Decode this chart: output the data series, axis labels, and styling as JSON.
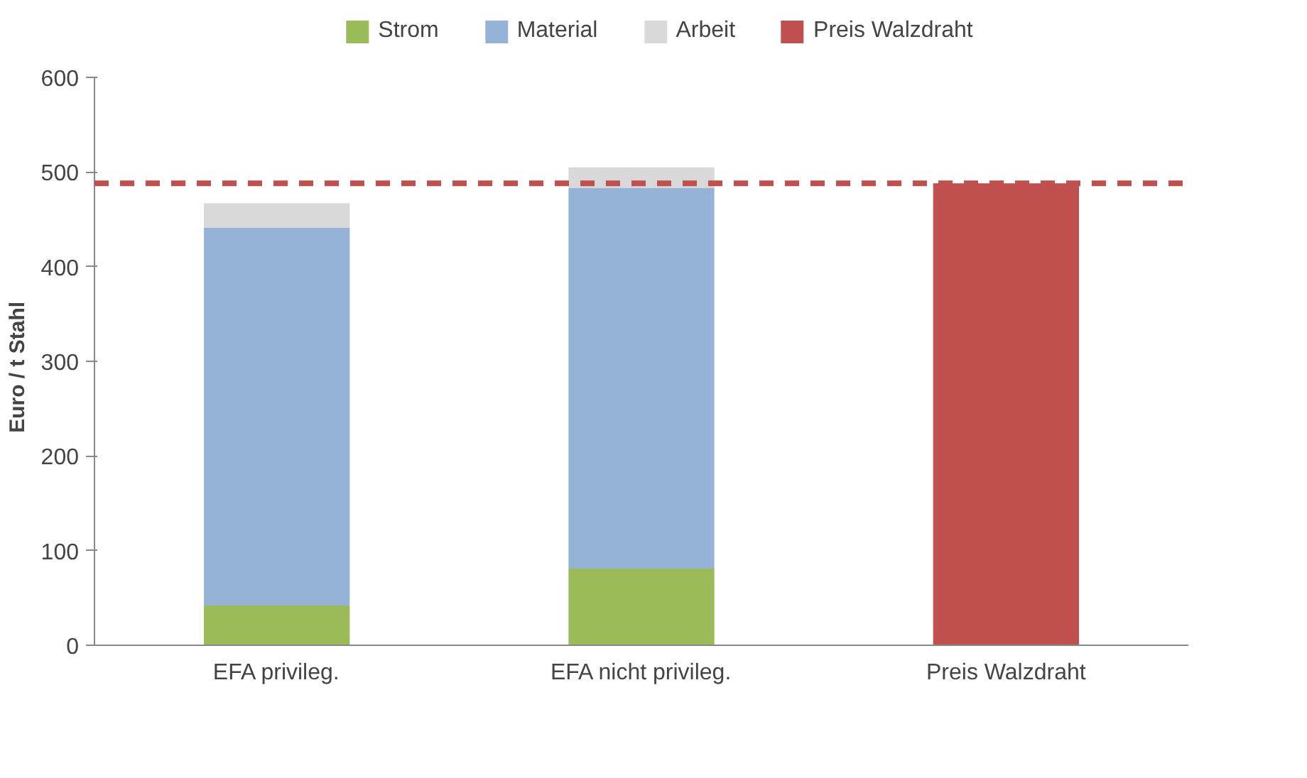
{
  "chart_data": {
    "type": "bar",
    "stacked": true,
    "ylabel": "Euro /  t  Stahl",
    "categories": [
      "EFA privileg.",
      "EFA nicht privileg.",
      "Preis Walzdraht"
    ],
    "series": [
      {
        "name": "Strom",
        "color": "#9bbb59",
        "values": [
          42,
          81,
          null
        ]
      },
      {
        "name": "Material",
        "color": "#95b3d7",
        "values": [
          399,
          402,
          null
        ]
      },
      {
        "name": "Arbeit",
        "color": "#d9d9d9",
        "values": [
          26,
          22,
          null
        ]
      },
      {
        "name": "Preis Walzdraht",
        "color": "#c0504d",
        "values": [
          null,
          null,
          488
        ]
      }
    ],
    "ylim": [
      0,
      600
    ],
    "yticks": [
      0,
      100,
      200,
      300,
      400,
      500,
      600
    ],
    "grid": false,
    "legend": "top",
    "ref_lines": [
      {
        "axis": "y",
        "value": 488,
        "label": null,
        "color": "#c0504d",
        "line_style": "dashed"
      }
    ]
  }
}
